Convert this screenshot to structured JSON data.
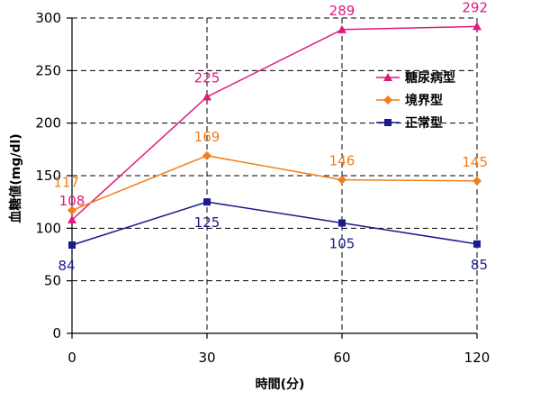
{
  "chart_data": {
    "type": "line",
    "xlabel": "時間(分)",
    "ylabel": "血糖値(mg/dl)",
    "ylim": [
      0,
      300
    ],
    "yticks": [
      0,
      50,
      100,
      150,
      200,
      250,
      300
    ],
    "categories": [
      "0",
      "30",
      "60",
      "120"
    ],
    "grid": "dashed, horizontal and vertical",
    "legend_position": "right",
    "series": [
      {
        "name": "糖尿病型",
        "values": [
          108,
          225,
          289,
          292
        ],
        "labels": [
          "108",
          "225",
          "289",
          "292"
        ],
        "color": "#e0197f",
        "marker": "triangle"
      },
      {
        "name": "境界型",
        "values": [
          117,
          169,
          146,
          145
        ],
        "labels": [
          "117",
          "169",
          "146",
          "145"
        ],
        "color": "#f07f1a",
        "marker": "diamond"
      },
      {
        "name": "正常型",
        "values": [
          84,
          125,
          105,
          85
        ],
        "labels": [
          "84",
          "125",
          "105",
          "85"
        ],
        "color": "#1a1a8c",
        "marker": "square"
      }
    ]
  }
}
